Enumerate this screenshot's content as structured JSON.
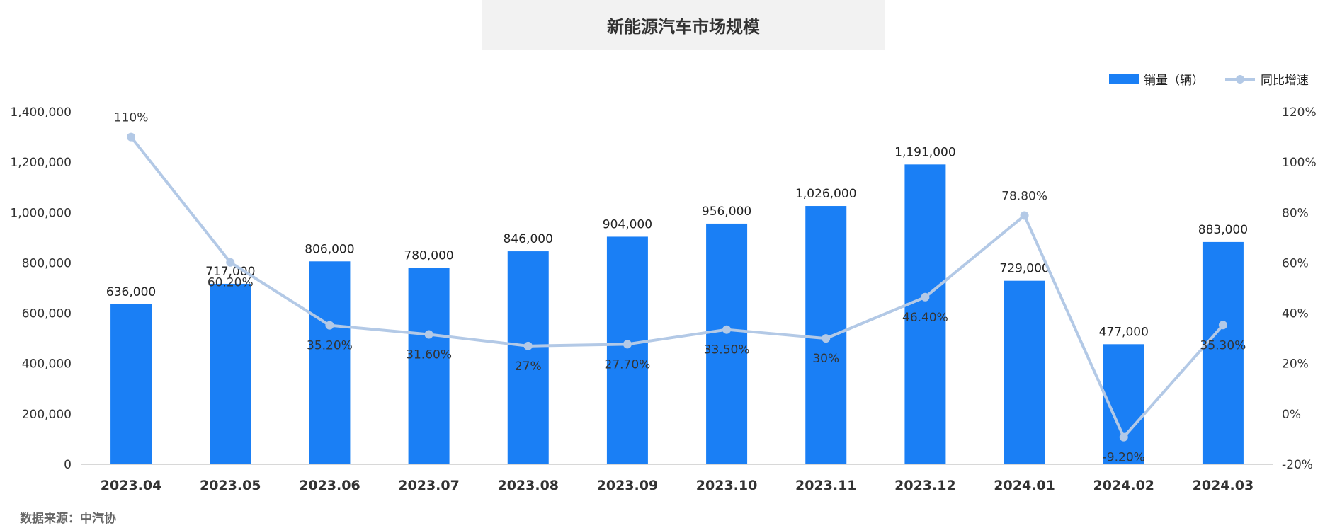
{
  "chart_data": {
    "type": "bar",
    "title": "新能源汽车市场规模",
    "categories": [
      "2023.04",
      "2023.05",
      "2023.06",
      "2023.07",
      "2023.08",
      "2023.09",
      "2023.10",
      "2023.11",
      "2023.12",
      "2024.01",
      "2024.02",
      "2024.03"
    ],
    "series": [
      {
        "name": "销量（辆）",
        "type": "bar",
        "color": "#1a7ff5",
        "values": [
          636000,
          717000,
          806000,
          780000,
          846000,
          904000,
          956000,
          1026000,
          1191000,
          729000,
          477000,
          883000
        ],
        "labels": [
          "636,000",
          "717,000",
          "806,000",
          "780,000",
          "846,000",
          "904,000",
          "956,000",
          "1,026,000",
          "1,191,000",
          "729,000",
          "477,000",
          "883,000"
        ]
      },
      {
        "name": "同比增速",
        "type": "line",
        "color": "#b3c9e6",
        "axis": "right",
        "values": [
          110,
          60.2,
          35.2,
          31.6,
          27,
          27.7,
          33.5,
          30,
          46.4,
          78.8,
          -9.2,
          35.3
        ],
        "labels": [
          "110%",
          "60.20%",
          "35.20%",
          "31.60%",
          "27%",
          "27.70%",
          "33.50%",
          "30%",
          "46.40%",
          "78.80%",
          "-9.20%",
          "35.30%"
        ]
      }
    ],
    "y_left": {
      "min": 0,
      "max": 1400000,
      "ticks": [
        "0",
        "200,000",
        "400,000",
        "600,000",
        "800,000",
        "1,000,000",
        "1,200,000",
        "1,400,000"
      ]
    },
    "y_right": {
      "min": -20,
      "max": 120,
      "ticks": [
        "-20%",
        "0%",
        "20%",
        "40%",
        "60%",
        "80%",
        "100%",
        "120%"
      ]
    },
    "legend_position": "top-right",
    "grid": false
  },
  "source_text": "数据来源：中汽协"
}
